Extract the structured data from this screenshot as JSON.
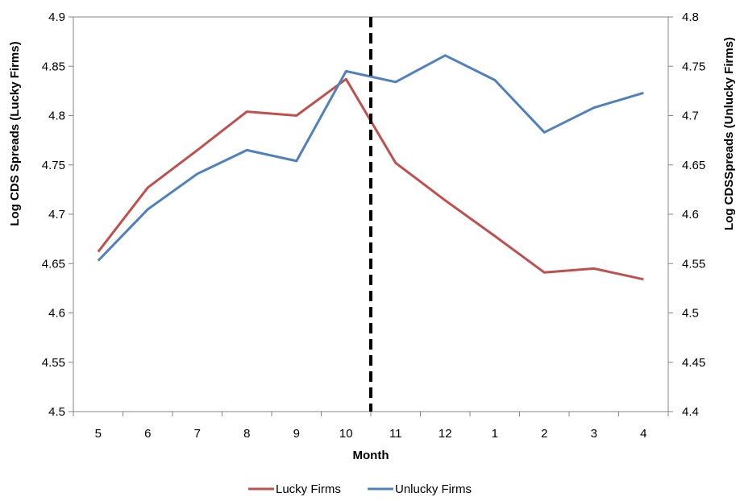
{
  "chart_data": {
    "type": "line",
    "categories": [
      "5",
      "6",
      "7",
      "8",
      "9",
      "10",
      "11",
      "12",
      "1",
      "2",
      "3",
      "4"
    ],
    "xlabel": "Month",
    "ylabel_left": "Log CDS Spreads (Lucky Firms)",
    "ylabel_right": "Log CDSSpreads (Unlucky Firms)",
    "ylim_left": [
      4.5,
      4.9
    ],
    "ylim_right": [
      4.4,
      4.8
    ],
    "yticks_left": [
      "4.5",
      "4.55",
      "4.6",
      "4.65",
      "4.7",
      "4.75",
      "4.8",
      "4.85",
      "4.9"
    ],
    "yticks_right": [
      "4.4",
      "4.45",
      "4.5",
      "4.55",
      "4.6",
      "4.65",
      "4.7",
      "4.75",
      "4.8"
    ],
    "legend_position": "bottom",
    "grid": false,
    "event_marker": {
      "between": [
        "10",
        "11"
      ],
      "style": "dashed vertical line",
      "color": "#000000"
    },
    "series": [
      {
        "name": "Lucky Firms",
        "axis": "left",
        "color": "#c0504d",
        "values": [
          4.662,
          4.727,
          4.765,
          4.804,
          4.8,
          4.837,
          4.752,
          4.714,
          4.678,
          4.641,
          4.645,
          4.634
        ]
      },
      {
        "name": "Unlucky Firms",
        "axis": "right",
        "color": "#4f81bd",
        "values": [
          4.553,
          4.605,
          4.641,
          4.665,
          4.654,
          4.745,
          4.734,
          4.761,
          4.736,
          4.683,
          4.708,
          4.723
        ]
      }
    ]
  }
}
